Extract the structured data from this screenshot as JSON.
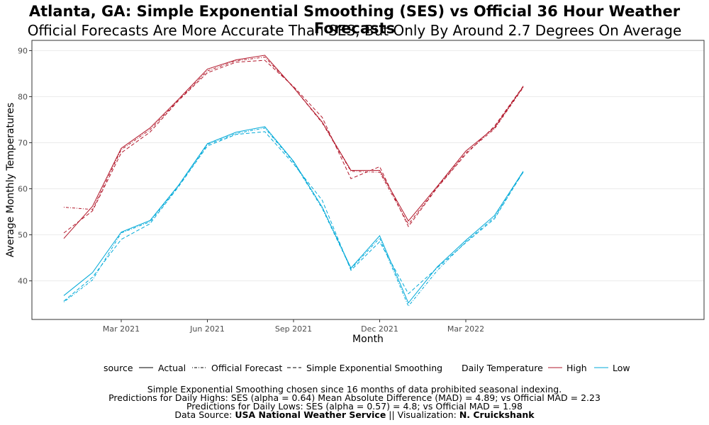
{
  "title": "Atlanta, GA: Simple Exponential Smoothing (SES) vs Official 36 Hour Weather Forecasts",
  "subtitle": "Official Forecasts Are More Accurate Than SES, But Only By Around 2.7 Degrees On Average",
  "colors": {
    "High": "#b2182b",
    "Low": "#00a9d8"
  },
  "legend": {
    "source_title": "source",
    "source_items": [
      "Actual",
      "Official Forecast",
      "Simple Exponential Smoothing"
    ],
    "temp_title": "Daily Temperature",
    "temp_items": [
      "High",
      "Low"
    ]
  },
  "caption": {
    "line1": "Simple Exponential Smoothing chosen since 16 months of data prohibited seasonal indexing.",
    "line2": "Predictions for Daily Highs: SES (alpha = 0.64) Mean Absolute Difference (MAD) = 4.89; vs Official MAD = 2.23",
    "line3": "Predictions for Daily Lows: SES (alpha = 0.57) = 4.8; vs Official MAD = 1.98",
    "line4_prefix": "Data Source: ",
    "line4_source": "USA National Weather Service",
    "line4_middle": " || Visualization: ",
    "line4_author": "N. Cruickshank"
  },
  "chart_data": {
    "type": "line",
    "xlabel": "Month",
    "ylabel": "Average Monthly Temperatures",
    "ylim": [
      33,
      91.5
    ],
    "yticks": [
      40,
      50,
      60,
      70,
      80,
      90
    ],
    "xticks": [
      {
        "label": "Mar 2021",
        "month": 2
      },
      {
        "label": "Jun 2021",
        "month": 5
      },
      {
        "label": "Sep 2021",
        "month": 8
      },
      {
        "label": "Dec 2021",
        "month": 11
      },
      {
        "label": "Mar 2022",
        "month": 14
      }
    ],
    "x": [
      "Jan 2021",
      "Feb 2021",
      "Mar 2021",
      "Apr 2021",
      "May 2021",
      "Jun 2021",
      "Jul 2021",
      "Aug 2021",
      "Sep 2021",
      "Oct 2021",
      "Nov 2021",
      "Dec 2021",
      "Jan 2022",
      "Feb 2022",
      "Mar 2022",
      "Apr 2022",
      "May 2022"
    ],
    "series": [
      {
        "name": "Actual",
        "temp": "High",
        "values": [
          49.2,
          56.2,
          68.8,
          73.2,
          79.5,
          86,
          88,
          89,
          82,
          74.5,
          64,
          64,
          53,
          60.5,
          68.2,
          73.3,
          82.2
        ]
      },
      {
        "name": "Official Forecast",
        "temp": "High",
        "values": [
          56,
          55.5,
          68.5,
          72.8,
          79.3,
          85.6,
          87.8,
          88.6,
          82,
          74.3,
          63.8,
          63.6,
          52.3,
          60.3,
          67.8,
          73,
          82
        ]
      },
      {
        "name": "Simple Exponential Smoothing",
        "temp": "High",
        "values": [
          50.4,
          55.2,
          67.8,
          72.3,
          79.2,
          85.2,
          87.5,
          87.9,
          82.2,
          75.5,
          62.2,
          64.8,
          51.8,
          60.2,
          67.5,
          73.6,
          82.3
        ]
      },
      {
        "name": "Actual",
        "temp": "Low",
        "values": [
          36.8,
          41.8,
          50.6,
          53.1,
          60.8,
          69.8,
          72.3,
          73.5,
          66,
          56,
          42.8,
          49.8,
          35.2,
          43,
          48.8,
          54.2,
          63.8
        ]
      },
      {
        "name": "Official Forecast",
        "temp": "Low",
        "values": [
          35.4,
          40.2,
          50.4,
          52.8,
          60.6,
          69.6,
          72,
          73.2,
          65.8,
          55.7,
          42.6,
          49.3,
          34.5,
          42.2,
          48.5,
          53.8,
          63.6
        ]
      },
      {
        "name": "Simple Exponential Smoothing",
        "temp": "Low",
        "values": [
          35.6,
          40.8,
          49,
          52.4,
          60.5,
          69.3,
          71.8,
          72.4,
          65.4,
          57.5,
          42.3,
          48.5,
          37.2,
          42.8,
          48.3,
          53.5,
          63.7
        ]
      }
    ]
  }
}
